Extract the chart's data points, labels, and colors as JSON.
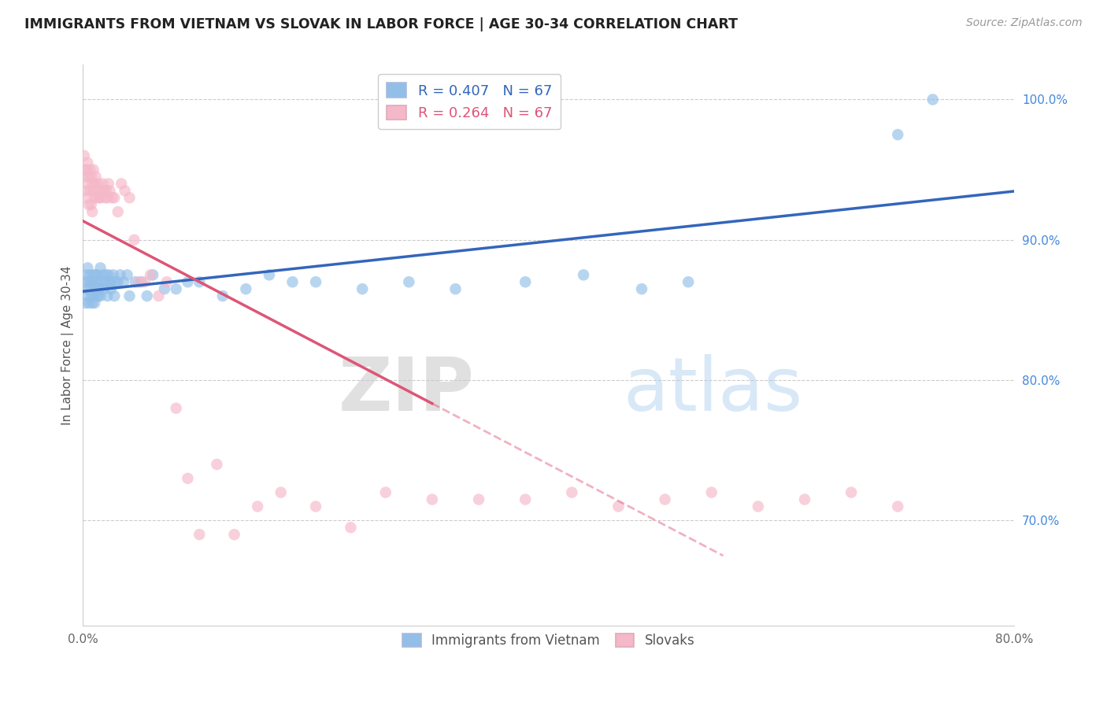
{
  "title": "IMMIGRANTS FROM VIETNAM VS SLOVAK IN LABOR FORCE | AGE 30-34 CORRELATION CHART",
  "source": "Source: ZipAtlas.com",
  "ylabel": "In Labor Force | Age 30-34",
  "xlim": [
    0.0,
    0.8
  ],
  "ylim": [
    0.625,
    1.025
  ],
  "xticks": [
    0.0,
    0.1,
    0.2,
    0.3,
    0.4,
    0.5,
    0.6,
    0.7,
    0.8
  ],
  "xticklabels": [
    "0.0%",
    "",
    "",
    "",
    "",
    "",
    "",
    "",
    "80.0%"
  ],
  "yticks": [
    0.7,
    0.8,
    0.9,
    1.0
  ],
  "yticklabels": [
    "70.0%",
    "80.0%",
    "90.0%",
    "100.0%"
  ],
  "legend_label_v": "R = 0.407   N = 67",
  "legend_label_s": "R = 0.264   N = 67",
  "legend_items_bottom": [
    "Immigrants from Vietnam",
    "Slovaks"
  ],
  "watermark_zip": "ZIP",
  "watermark_atlas": "atlas",
  "vietnam_color": "#92bfe8",
  "slovak_color": "#f5b8c8",
  "vietnam_line_color": "#3366bb",
  "slovak_line_color": "#dd5577",
  "grid_color": "#cccccc",
  "background_color": "#ffffff",
  "vietnam_x": [
    0.001,
    0.002,
    0.003,
    0.003,
    0.004,
    0.004,
    0.005,
    0.005,
    0.006,
    0.006,
    0.007,
    0.007,
    0.008,
    0.008,
    0.009,
    0.009,
    0.01,
    0.01,
    0.011,
    0.011,
    0.012,
    0.012,
    0.013,
    0.013,
    0.014,
    0.015,
    0.015,
    0.016,
    0.017,
    0.018,
    0.019,
    0.02,
    0.021,
    0.022,
    0.023,
    0.024,
    0.025,
    0.026,
    0.027,
    0.028,
    0.03,
    0.032,
    0.035,
    0.038,
    0.04,
    0.045,
    0.05,
    0.055,
    0.06,
    0.07,
    0.08,
    0.09,
    0.1,
    0.12,
    0.14,
    0.16,
    0.18,
    0.2,
    0.24,
    0.28,
    0.32,
    0.38,
    0.43,
    0.48,
    0.52,
    0.7,
    0.73
  ],
  "vietnam_y": [
    0.87,
    0.855,
    0.865,
    0.875,
    0.86,
    0.88,
    0.855,
    0.87,
    0.865,
    0.875,
    0.86,
    0.87,
    0.855,
    0.87,
    0.86,
    0.875,
    0.855,
    0.87,
    0.865,
    0.875,
    0.86,
    0.875,
    0.86,
    0.87,
    0.865,
    0.86,
    0.88,
    0.87,
    0.875,
    0.865,
    0.87,
    0.875,
    0.86,
    0.875,
    0.87,
    0.865,
    0.87,
    0.875,
    0.86,
    0.87,
    0.87,
    0.875,
    0.87,
    0.875,
    0.86,
    0.87,
    0.87,
    0.86,
    0.875,
    0.865,
    0.865,
    0.87,
    0.87,
    0.86,
    0.865,
    0.875,
    0.87,
    0.87,
    0.865,
    0.87,
    0.865,
    0.87,
    0.875,
    0.865,
    0.87,
    0.975,
    1.0
  ],
  "slovak_x": [
    0.001,
    0.001,
    0.002,
    0.002,
    0.003,
    0.003,
    0.004,
    0.004,
    0.005,
    0.005,
    0.006,
    0.006,
    0.007,
    0.007,
    0.008,
    0.008,
    0.009,
    0.009,
    0.01,
    0.01,
    0.011,
    0.011,
    0.012,
    0.013,
    0.014,
    0.015,
    0.016,
    0.017,
    0.018,
    0.019,
    0.02,
    0.021,
    0.022,
    0.023,
    0.025,
    0.027,
    0.03,
    0.033,
    0.036,
    0.04,
    0.044,
    0.048,
    0.053,
    0.058,
    0.065,
    0.072,
    0.08,
    0.09,
    0.1,
    0.115,
    0.13,
    0.15,
    0.17,
    0.2,
    0.23,
    0.26,
    0.3,
    0.34,
    0.38,
    0.42,
    0.46,
    0.5,
    0.54,
    0.58,
    0.62,
    0.66,
    0.7
  ],
  "slovak_y": [
    0.96,
    0.945,
    0.935,
    0.95,
    0.93,
    0.95,
    0.94,
    0.955,
    0.925,
    0.945,
    0.935,
    0.95,
    0.925,
    0.945,
    0.92,
    0.94,
    0.935,
    0.95,
    0.93,
    0.94,
    0.935,
    0.945,
    0.93,
    0.94,
    0.93,
    0.93,
    0.935,
    0.94,
    0.935,
    0.93,
    0.935,
    0.93,
    0.94,
    0.935,
    0.93,
    0.93,
    0.92,
    0.94,
    0.935,
    0.93,
    0.9,
    0.87,
    0.87,
    0.875,
    0.86,
    0.87,
    0.78,
    0.73,
    0.69,
    0.74,
    0.69,
    0.71,
    0.72,
    0.71,
    0.695,
    0.72,
    0.715,
    0.715,
    0.715,
    0.72,
    0.71,
    0.715,
    0.72,
    0.71,
    0.715,
    0.72,
    0.71
  ]
}
